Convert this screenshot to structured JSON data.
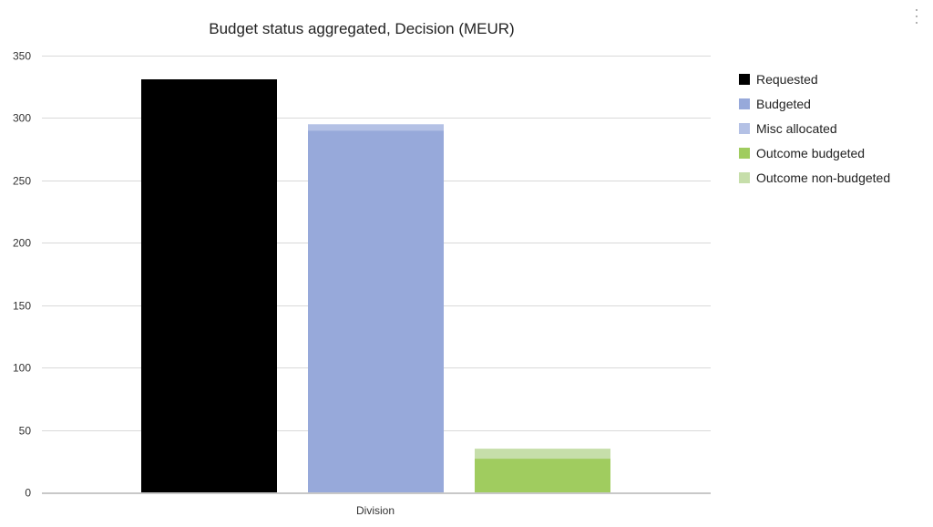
{
  "chart_data": {
    "type": "bar",
    "stacked": true,
    "title": "Budget status aggregated, Decision (MEUR)",
    "categories": [
      "Division"
    ],
    "ylim": [
      0,
      350
    ],
    "yticks": [
      0,
      50,
      100,
      150,
      200,
      250,
      300,
      350
    ],
    "grid": true,
    "legend_position": "right",
    "stacks": [
      {
        "group": "requested",
        "segments": [
          {
            "series": "Requested",
            "value": 331
          }
        ]
      },
      {
        "group": "budgeted",
        "segments": [
          {
            "series": "Budgeted",
            "value": 290
          },
          {
            "series": "Misc allocated",
            "value": 5
          }
        ]
      },
      {
        "group": "outcome",
        "segments": [
          {
            "series": "Outcome budgeted",
            "value": 27
          },
          {
            "series": "Outcome non-budgeted",
            "value": 8
          }
        ]
      }
    ],
    "series": [
      {
        "name": "Requested",
        "color": "#000000"
      },
      {
        "name": "Budgeted",
        "color": "#97a9da"
      },
      {
        "name": "Misc allocated",
        "color": "#b4c1e5"
      },
      {
        "name": "Outcome budgeted",
        "color": "#a0cc5f"
      },
      {
        "name": "Outcome non-budgeted",
        "color": "#c6deaa"
      }
    ]
  },
  "menu": {
    "icon": "more-vertical-icon"
  }
}
